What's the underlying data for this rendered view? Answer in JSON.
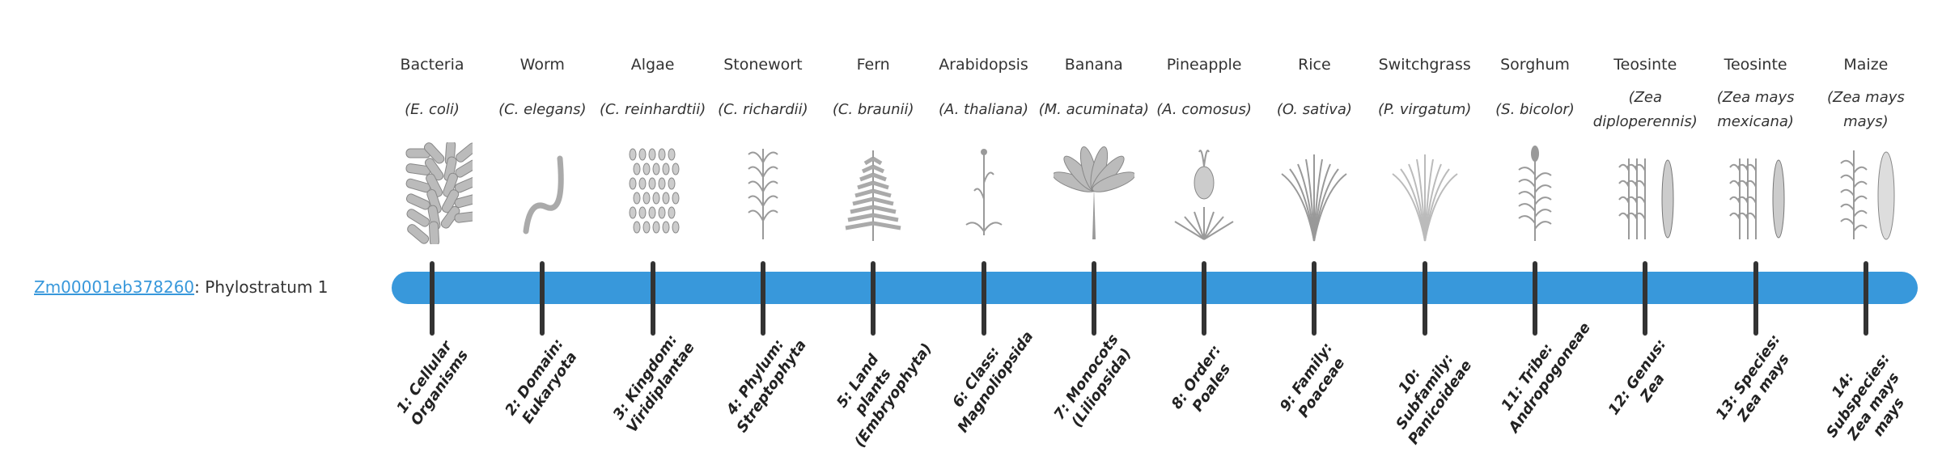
{
  "gene": {
    "id": "Zm00001eb378260",
    "suffix": ": Phylostratum 1"
  },
  "colors": {
    "bar": "#3898db",
    "tick": "#333333",
    "link": "#3898db"
  },
  "strata": [
    {
      "common": "Bacteria",
      "scientific": "(E. coli)",
      "icon": "bacteria-icon",
      "label": "1: Cellular Organisms"
    },
    {
      "common": "Worm",
      "scientific": "(C. elegans)",
      "icon": "worm-icon",
      "label": "2: Domain: Eukaryota"
    },
    {
      "common": "Algae",
      "scientific": "(C. reinhardtii)",
      "icon": "algae-icon",
      "label": "3: Kingdom: Viridiplantae"
    },
    {
      "common": "Stonewort",
      "scientific": "(C. richardii)",
      "icon": "stonewort-icon",
      "label": "4: Phylum: Streptophyta"
    },
    {
      "common": "Fern",
      "scientific": "(C. braunii)",
      "icon": "fern-icon",
      "label": "5: Land plants (Embryophyta)"
    },
    {
      "common": "Arabidopsis",
      "scientific": "(A. thaliana)",
      "icon": "arabidopsis-icon",
      "label": "6: Class: Magnoliopsida"
    },
    {
      "common": "Banana",
      "scientific": "(M. acuminata)",
      "icon": "banana-icon",
      "label": "7: Monocots (Liliopsida)"
    },
    {
      "common": "Pineapple",
      "scientific": "(A. comosus)",
      "icon": "pineapple-icon",
      "label": "8: Order: Poales"
    },
    {
      "common": "Rice",
      "scientific": "(O. sativa)",
      "icon": "rice-icon",
      "label": "9: Family: Poaceae"
    },
    {
      "common": "Switchgrass",
      "scientific": "(P. virgatum)",
      "icon": "switchgrass-icon",
      "label": "10: Subfamily: Panicoideae"
    },
    {
      "common": "Sorghum",
      "scientific": "(S. bicolor)",
      "icon": "sorghum-icon",
      "label": "11: Tribe: Andropogoneae"
    },
    {
      "common": "Teosinte",
      "scientific": "(Zea diploperennis)",
      "icon": "teosinte-icon",
      "label": "12: Genus: Zea"
    },
    {
      "common": "Teosinte",
      "scientific": "(Zea mays mexicana)",
      "icon": "teosinte-icon",
      "label": "13: Species: Zea mays"
    },
    {
      "common": "Maize",
      "scientific": "(Zea mays mays)",
      "icon": "maize-icon",
      "label": "14: Subspecies: Zea mays mays"
    }
  ],
  "current_stratum": 1
}
